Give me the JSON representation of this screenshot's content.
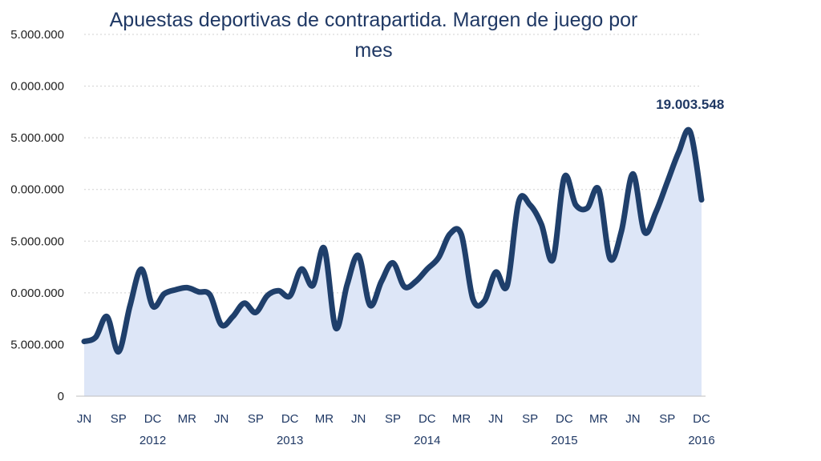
{
  "chart_data": {
    "type": "area",
    "title_line1": "Apuestas deportivas de contrapartida. Margen de juego por",
    "title_line2": "mes",
    "y_tick_labels": [
      "0",
      "5.000.000",
      "0.000.000",
      "5.000.000",
      "0.000.000",
      "5.000.000",
      "0.000.000",
      "5.000.000"
    ],
    "ylim": [
      0,
      35000000
    ],
    "x_tick_labels": [
      "JN",
      "SP",
      "DC",
      "MR",
      "JN",
      "SP",
      "DC",
      "MR",
      "JN",
      "SP",
      "DC",
      "MR",
      "JN",
      "SP",
      "DC",
      "MR",
      "JN",
      "SP",
      "DC"
    ],
    "year_labels": [
      "2012",
      "2013",
      "2014",
      "2015",
      "2016"
    ],
    "year_tick_index": [
      2,
      6,
      10,
      14,
      18
    ],
    "x_start": "2012-06",
    "x_end": "2016-12",
    "annotation": "19.003.548",
    "annotation_index": 54,
    "grid": "y-dashed",
    "colors": {
      "line": "#1f3f6b",
      "fill": "#dde6f7",
      "title": "#1f3864",
      "grid": "#d0d0d0"
    },
    "series": [
      {
        "values": [
          5300000,
          5700000,
          7700000,
          4300000,
          8700000,
          12300000,
          8700000,
          9900000,
          10300000,
          10500000,
          10100000,
          9800000,
          6900000,
          7700000,
          9000000,
          8100000,
          9700000,
          10200000,
          9700000,
          12300000,
          10700000,
          14300000,
          6600000,
          10800000,
          13600000,
          8800000,
          11100000,
          12900000,
          10600000,
          11100000,
          12300000,
          13400000,
          15700000,
          15600000,
          9400000,
          9200000,
          12000000,
          10700000,
          18800000,
          18500000,
          16600000,
          13200000,
          21200000,
          18500000,
          18200000,
          20000000,
          13300000,
          16000000,
          21500000,
          15900000,
          17800000,
          20700000,
          23600000,
          25600000,
          19003548
        ]
      }
    ]
  }
}
